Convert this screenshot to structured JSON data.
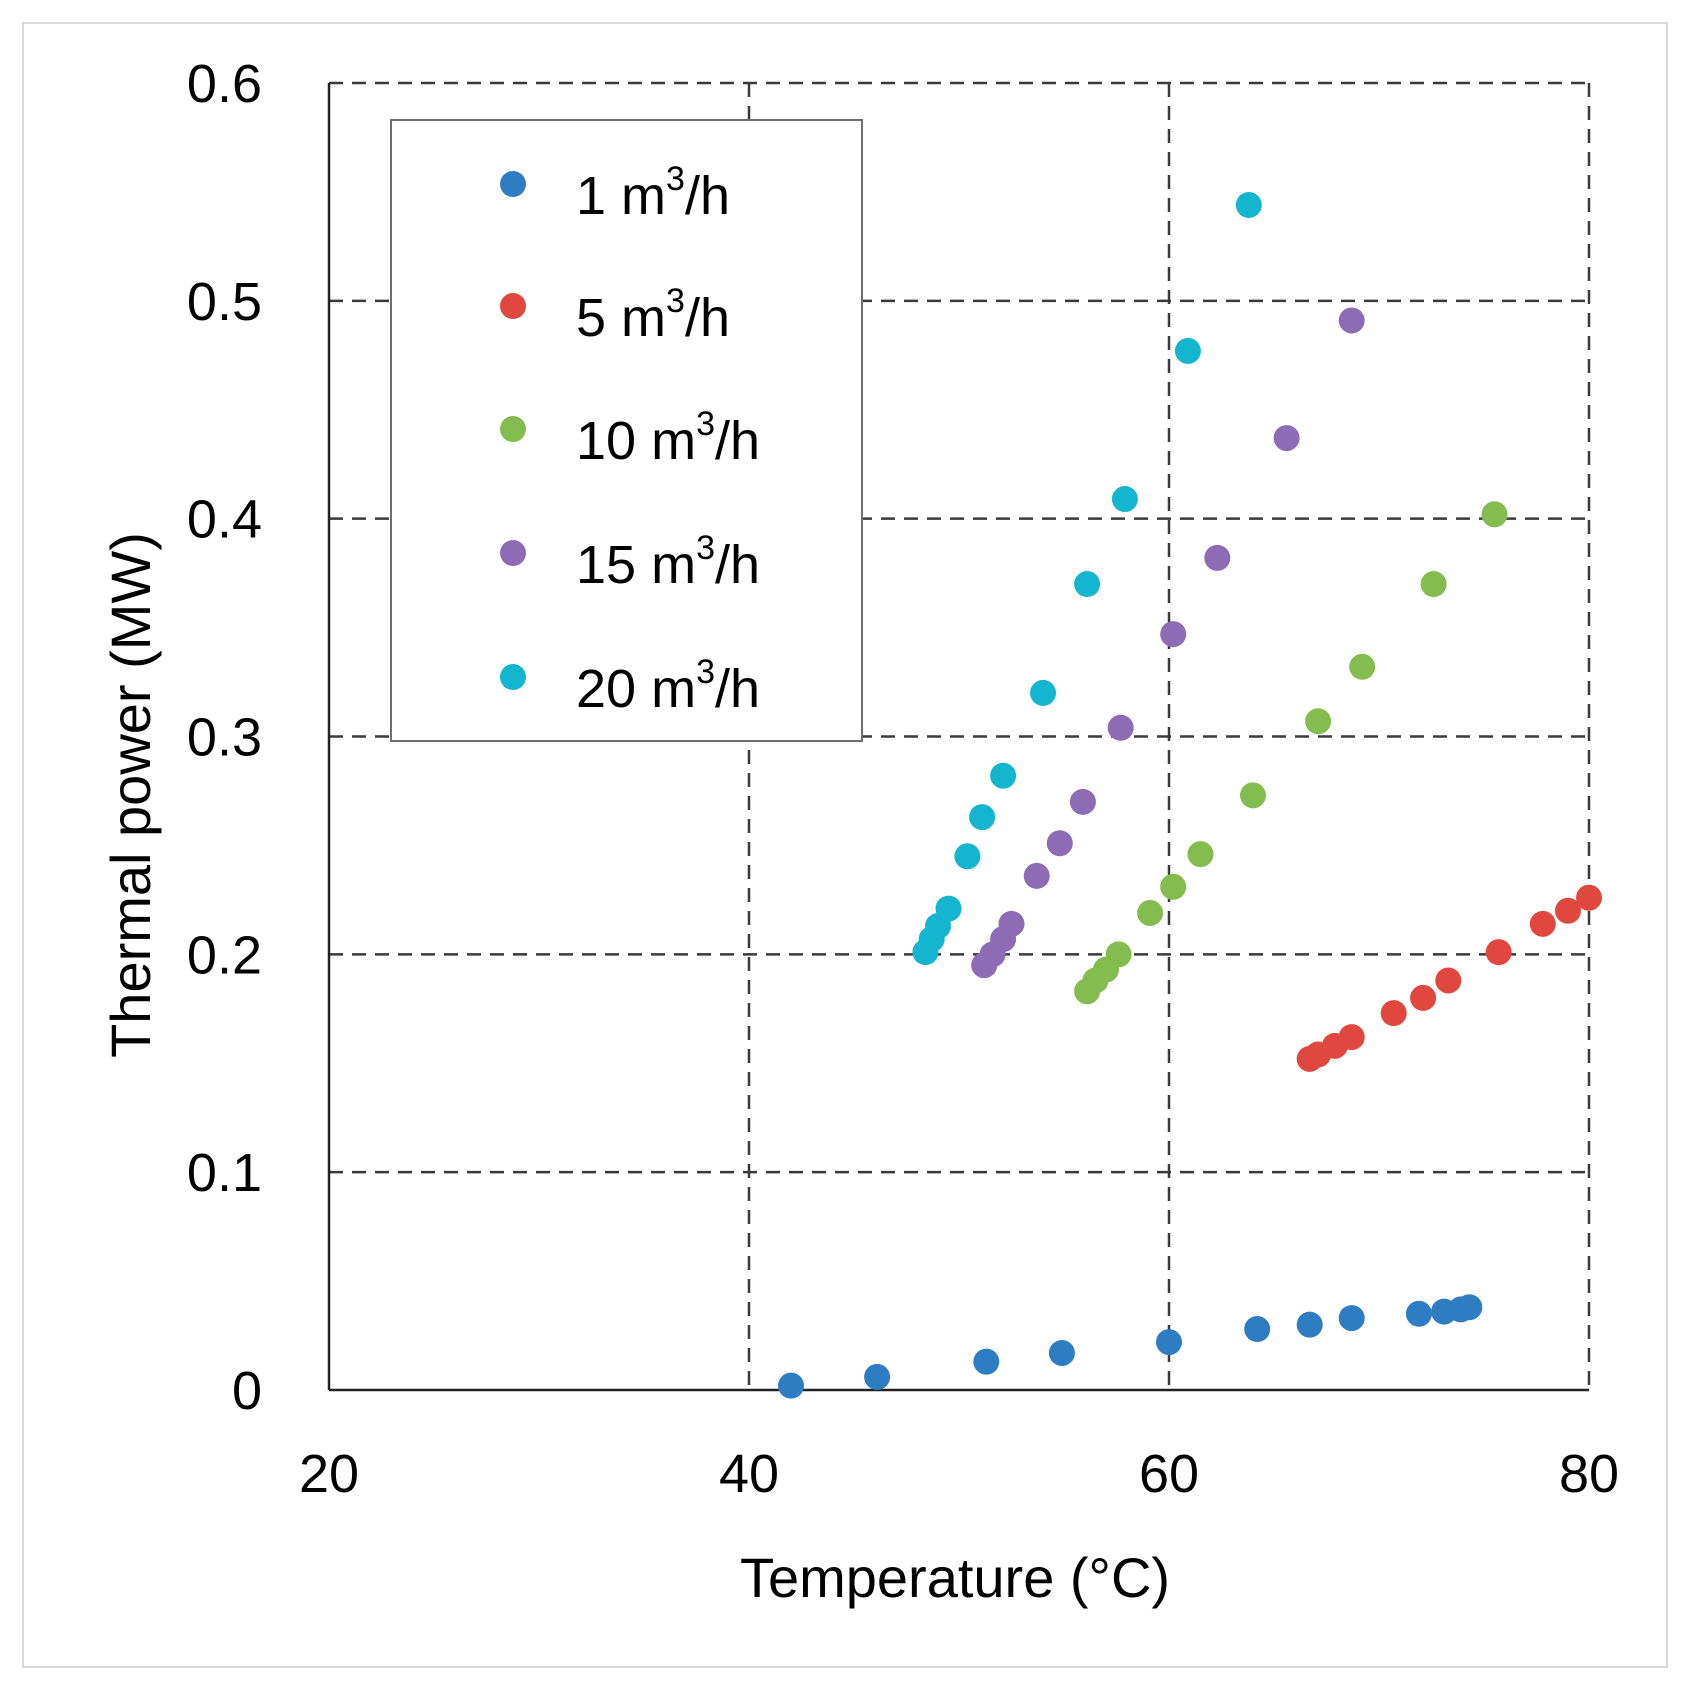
{
  "chart_data": {
    "type": "scatter",
    "title": "",
    "xlabel": "Temperature (°C)",
    "ylabel": "Thermal power (MW)",
    "xlim": [
      20,
      80
    ],
    "ylim": [
      0,
      0.6
    ],
    "x_ticks": [
      20,
      40,
      60,
      80
    ],
    "y_ticks": [
      0,
      0.1,
      0.2,
      0.3,
      0.4,
      0.5,
      0.6
    ],
    "x_tick_labels": [
      "20",
      "40",
      "60",
      "80"
    ],
    "y_tick_labels": [
      "0",
      "0.1",
      "0.2",
      "0.3",
      "0.4",
      "0.5",
      "0.6"
    ],
    "grid": "dashed",
    "legend_position": "top-left",
    "series": [
      {
        "name": "1 m3/h",
        "name_base": "1 m",
        "name_sup": "3",
        "name_suffix": "/h",
        "color": "#2e7cc2",
        "points": [
          [
            42,
            0.002
          ],
          [
            46.1,
            0.006
          ],
          [
            51.3,
            0.013
          ],
          [
            54.9,
            0.017
          ],
          [
            60,
            0.022
          ],
          [
            64.2,
            0.028
          ],
          [
            66.7,
            0.03
          ],
          [
            68.7,
            0.033
          ],
          [
            71.9,
            0.035
          ],
          [
            73.1,
            0.036
          ],
          [
            73.9,
            0.037
          ],
          [
            74.3,
            0.038
          ]
        ]
      },
      {
        "name": "5 m3/h",
        "name_base": "5 m",
        "name_sup": "3",
        "name_suffix": "/h",
        "color": "#e0473f",
        "points": [
          [
            66.7,
            0.152
          ],
          [
            67.1,
            0.154
          ],
          [
            67.9,
            0.158
          ],
          [
            68.7,
            0.162
          ],
          [
            70.7,
            0.173
          ],
          [
            72.1,
            0.18
          ],
          [
            73.3,
            0.188
          ],
          [
            75.7,
            0.201
          ],
          [
            77.8,
            0.214
          ],
          [
            79,
            0.22
          ],
          [
            80,
            0.226
          ]
        ]
      },
      {
        "name": "10 m3/h",
        "name_base": "10 m",
        "name_sup": "3",
        "name_suffix": "/h",
        "color": "#84bd4f",
        "points": [
          [
            56.1,
            0.183
          ],
          [
            56.5,
            0.188
          ],
          [
            57,
            0.193
          ],
          [
            57.6,
            0.2
          ],
          [
            59.1,
            0.219
          ],
          [
            60.2,
            0.231
          ],
          [
            61.5,
            0.246
          ],
          [
            64,
            0.273
          ],
          [
            67.1,
            0.307
          ],
          [
            69.2,
            0.332
          ],
          [
            72.6,
            0.37
          ],
          [
            75.5,
            0.402
          ]
        ]
      },
      {
        "name": "15 m3/h",
        "name_base": "15 m",
        "name_sup": "3",
        "name_suffix": "/h",
        "color": "#8e6bb5",
        "points": [
          [
            51.2,
            0.195
          ],
          [
            51.6,
            0.2
          ],
          [
            52.1,
            0.207
          ],
          [
            52.5,
            0.214
          ],
          [
            53.7,
            0.236
          ],
          [
            54.8,
            0.251
          ],
          [
            55.9,
            0.27
          ],
          [
            57.7,
            0.304
          ],
          [
            60.2,
            0.347
          ],
          [
            62.3,
            0.382
          ],
          [
            65.6,
            0.437
          ],
          [
            68.7,
            0.491
          ]
        ]
      },
      {
        "name": "20 m3/h",
        "name_base": "20 m",
        "name_sup": "3",
        "name_suffix": "/h",
        "color": "#14b6cf",
        "points": [
          [
            48.4,
            0.201
          ],
          [
            48.7,
            0.207
          ],
          [
            49,
            0.213
          ],
          [
            49.5,
            0.221
          ],
          [
            50.4,
            0.245
          ],
          [
            51.1,
            0.263
          ],
          [
            52.1,
            0.282
          ],
          [
            54,
            0.32
          ],
          [
            56.1,
            0.37
          ],
          [
            57.9,
            0.409
          ],
          [
            60.9,
            0.477
          ],
          [
            63.8,
            0.544
          ]
        ]
      }
    ]
  }
}
